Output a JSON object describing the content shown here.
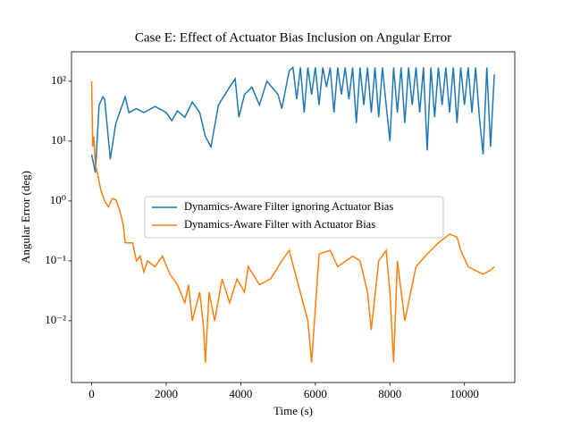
{
  "chart_data": {
    "type": "line",
    "title": "Case E: Effect of Actuator Bias Inclusion on Angular Error",
    "x_label": "Time (s)",
    "y_label": "Angular Error (deg)",
    "log_y": true,
    "legend_position": "center",
    "xlim": [
      -540,
      11350
    ],
    "ylim": [
      0.00093,
      310
    ],
    "xticks": [
      0,
      2000,
      4000,
      6000,
      8000,
      10000
    ],
    "yticks": [
      {
        "value": 0.01,
        "label": "10⁻²"
      },
      {
        "value": 0.1,
        "label": "10⁻¹"
      },
      {
        "value": 1,
        "label": "10⁰"
      },
      {
        "value": 10,
        "label": "10¹"
      },
      {
        "value": 100,
        "label": "10²"
      }
    ],
    "series": [
      {
        "name": "Dynamics-Aware Filter ignoring Actuator Bias",
        "color": "#1f77b4",
        "x": [
          0,
          100,
          200,
          300,
          350,
          500,
          650,
          900,
          1000,
          1200,
          1400,
          1700,
          2000,
          2150,
          2300,
          2500,
          2700,
          2900,
          3050,
          3200,
          3400,
          3700,
          3850,
          3950,
          4100,
          4300,
          4500,
          4700,
          5000,
          5100,
          5300,
          5400,
          5500,
          5600,
          5700,
          5800,
          5900,
          6000,
          6100,
          6200,
          6300,
          6400,
          6500,
          6600,
          6700,
          6800,
          6900,
          7000,
          7100,
          7200,
          7300,
          7400,
          7500,
          7600,
          7700,
          7800,
          7900,
          8000,
          8100,
          8200,
          8300,
          8400,
          8500,
          8600,
          8700,
          8800,
          8900,
          9000,
          9100,
          9200,
          9300,
          9400,
          9500,
          9600,
          9700,
          9800,
          9900,
          10000,
          10100,
          10200,
          10300,
          10400,
          10500,
          10600,
          10700,
          10800
        ],
        "values": [
          6,
          3,
          40,
          55,
          50,
          5,
          20,
          55,
          30,
          35,
          30,
          38,
          30,
          22,
          32,
          25,
          45,
          30,
          12,
          8,
          40,
          80,
          110,
          25,
          60,
          80,
          40,
          100,
          60,
          35,
          150,
          170,
          50,
          170,
          30,
          170,
          60,
          170,
          40,
          170,
          80,
          170,
          30,
          170,
          60,
          170,
          50,
          170,
          20,
          170,
          40,
          170,
          30,
          170,
          25,
          170,
          40,
          10,
          170,
          30,
          170,
          20,
          170,
          40,
          170,
          30,
          170,
          7,
          170,
          25,
          170,
          40,
          170,
          30,
          170,
          20,
          170,
          40,
          170,
          30,
          170,
          25,
          6,
          170,
          8,
          130
        ]
      },
      {
        "name": "Dynamics-Aware Filter with Actuator Bias",
        "color": "#ff7f0e",
        "x": [
          0,
          30,
          60,
          100,
          150,
          250,
          350,
          450,
          550,
          650,
          750,
          850,
          900,
          1100,
          1200,
          1300,
          1400,
          1500,
          1700,
          1900,
          2100,
          2300,
          2500,
          2600,
          2700,
          2900,
          3000,
          3050,
          3150,
          3300,
          3500,
          3700,
          3900,
          4100,
          4200,
          4500,
          4800,
          5100,
          5300,
          5500,
          5800,
          5900,
          6100,
          6400,
          6600,
          7000,
          7200,
          7400,
          7500,
          7700,
          7900,
          8000,
          8100,
          8200,
          8400,
          8500,
          8700,
          9000,
          9300,
          9600,
          9800,
          9900,
          10100,
          10500,
          10700,
          10800
        ],
        "values": [
          100,
          8,
          12,
          4,
          3,
          1.5,
          1.0,
          0.8,
          1.1,
          1.05,
          0.7,
          0.4,
          0.2,
          0.2,
          0.1,
          0.12,
          0.065,
          0.1,
          0.08,
          0.12,
          0.06,
          0.04,
          0.02,
          0.04,
          0.01,
          0.03,
          0.008,
          0.002,
          0.03,
          0.01,
          0.05,
          0.02,
          0.05,
          0.03,
          0.08,
          0.04,
          0.05,
          0.1,
          0.15,
          0.05,
          0.01,
          0.002,
          0.13,
          0.15,
          0.08,
          0.12,
          0.1,
          0.03,
          0.007,
          0.1,
          0.15,
          0.03,
          0.002,
          0.1,
          0.01,
          0.02,
          0.08,
          0.13,
          0.2,
          0.28,
          0.25,
          0.15,
          0.08,
          0.06,
          0.07,
          0.08
        ]
      }
    ]
  }
}
